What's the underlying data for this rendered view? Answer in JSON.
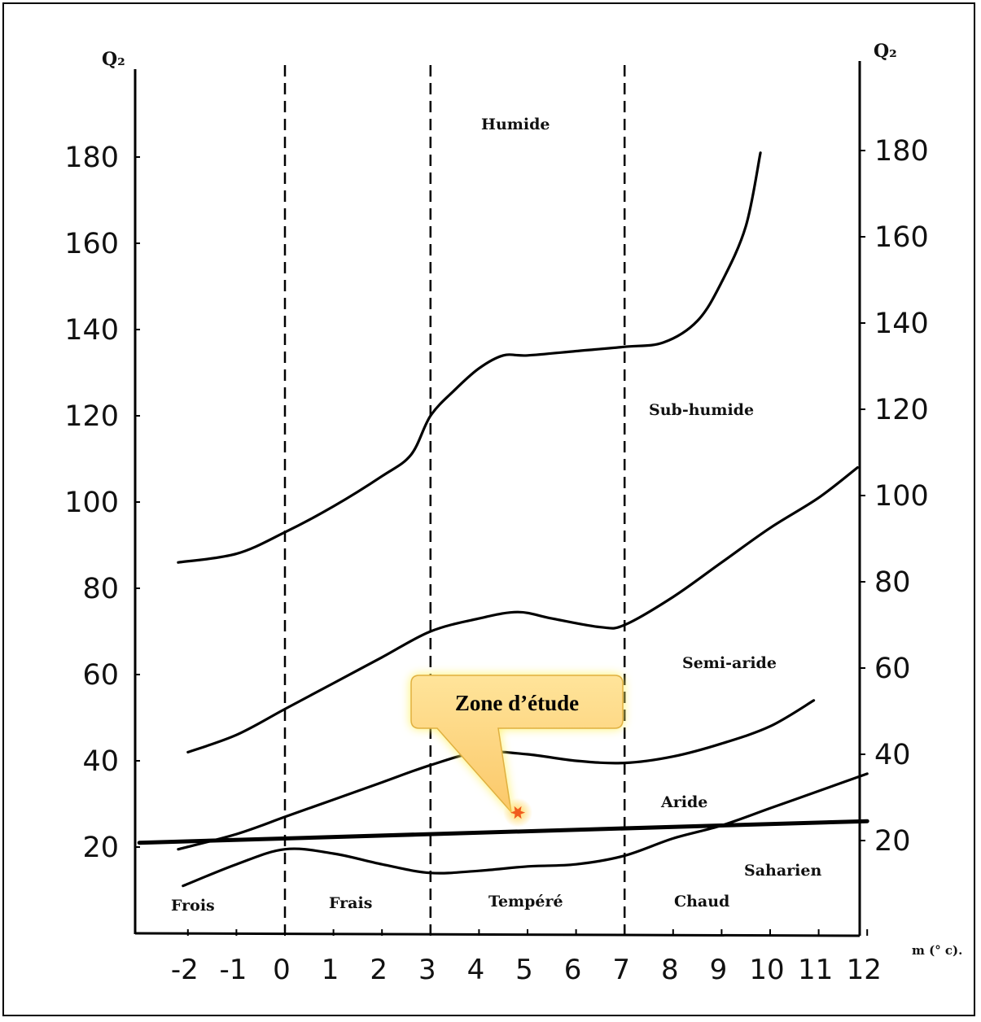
{
  "chart_data": {
    "type": "line",
    "title": "",
    "y_axis_title": "Q₂",
    "y_axis_title_right": "Q₂",
    "x_axis_title": "m (° c).",
    "xlim": [
      -3,
      12
    ],
    "ylim": [
      0,
      200
    ],
    "x_ticks": [
      -2,
      -1,
      0,
      1,
      2,
      3,
      4,
      5,
      6,
      7,
      8,
      9,
      10,
      11,
      12
    ],
    "y_ticks": [
      20,
      40,
      60,
      80,
      100,
      120,
      140,
      160,
      180
    ],
    "y_ticks_right": [
      20,
      40,
      60,
      80,
      100,
      120,
      140,
      160,
      180
    ],
    "vertical_dividers": [
      0,
      3,
      7
    ],
    "zone_labels_y": [
      "Humide",
      "Sub-humide",
      "Semi-aride",
      "Aride",
      "Saharien"
    ],
    "zone_labels_x": [
      "Frois",
      "Frais",
      "Tempéré",
      "Chaud"
    ],
    "series": [
      {
        "values": [
          [
            -2.2,
            86
          ],
          [
            -1,
            88
          ],
          [
            0,
            93
          ],
          [
            1,
            99
          ],
          [
            2,
            106
          ],
          [
            2.6,
            111
          ],
          [
            3,
            120
          ],
          [
            3.5,
            126
          ],
          [
            4,
            131
          ],
          [
            4.5,
            134
          ],
          [
            5,
            134
          ],
          [
            6,
            135
          ],
          [
            7,
            136
          ],
          [
            7.8,
            137
          ],
          [
            8.5,
            142
          ],
          [
            9,
            151
          ],
          [
            9.5,
            164
          ],
          [
            9.8,
            181
          ]
        ]
      },
      {
        "values": [
          [
            -2,
            42
          ],
          [
            -1,
            46
          ],
          [
            0,
            52
          ],
          [
            1,
            58
          ],
          [
            2,
            64
          ],
          [
            3,
            70
          ],
          [
            4,
            73
          ],
          [
            4.8,
            74.5
          ],
          [
            5.5,
            73
          ],
          [
            6.5,
            71
          ],
          [
            7,
            71.5
          ],
          [
            8,
            78
          ],
          [
            9,
            86
          ],
          [
            10,
            94
          ],
          [
            11,
            101
          ],
          [
            11.8,
            108
          ]
        ]
      },
      {
        "values": [
          [
            -2.2,
            19.5
          ],
          [
            -1,
            23
          ],
          [
            0,
            27
          ],
          [
            1,
            31
          ],
          [
            2,
            35
          ],
          [
            3,
            39
          ],
          [
            4,
            42
          ],
          [
            5,
            41.5
          ],
          [
            6,
            40
          ],
          [
            7,
            39.5
          ],
          [
            8,
            41
          ],
          [
            9,
            44
          ],
          [
            10,
            48
          ],
          [
            10.9,
            54
          ]
        ]
      },
      {
        "values": [
          [
            -2.1,
            11
          ],
          [
            -1,
            16
          ],
          [
            0,
            19.5
          ],
          [
            1,
            18.5
          ],
          [
            2,
            16
          ],
          [
            3,
            14
          ],
          [
            4,
            14.5
          ],
          [
            5,
            15.5
          ],
          [
            6,
            16
          ],
          [
            7,
            18
          ],
          [
            8,
            22
          ],
          [
            9,
            25
          ],
          [
            10,
            29
          ],
          [
            11,
            33
          ],
          [
            12,
            37
          ]
        ]
      },
      {
        "values": [
          [
            -3,
            21
          ],
          [
            12,
            26
          ]
        ]
      }
    ],
    "annotation": {
      "text": "Zone d’étude",
      "point": [
        4.8,
        28
      ]
    }
  }
}
